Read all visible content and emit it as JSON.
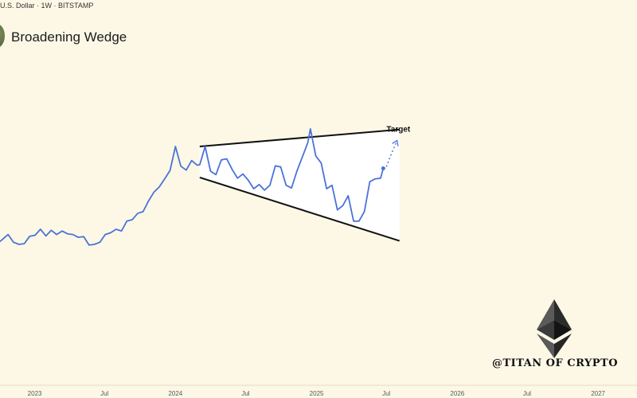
{
  "header": {
    "symbol_line": "U.S. Dollar · 1W · BITSTAMP",
    "title": "Broadening Wedge"
  },
  "watermark": {
    "text": "@TITAN OF CRYPTO",
    "icon": "ethereum-logo-icon"
  },
  "colors": {
    "background": "#fdf8e6",
    "price_line": "#4a73d8",
    "trendline": "#111111",
    "wedge_fill": "#ffffff",
    "target_arrow": "#4a73d8"
  },
  "chart_data": {
    "type": "line",
    "title": "Broadening Wedge",
    "xlabel": "",
    "ylabel": "",
    "grid": false,
    "legend": "none",
    "x_tick_labels": [
      "2023",
      "Jul",
      "2024",
      "Jul",
      "2025",
      "Jul",
      "2026",
      "Jul",
      "2027"
    ],
    "x_tick_dates": [
      "2023-01-01",
      "2023-07-01",
      "2024-01-01",
      "2024-07-01",
      "2025-01-01",
      "2025-07-01",
      "2026-01-01",
      "2026-07-01",
      "2027-01-01"
    ],
    "xlim": [
      "2022-10-03",
      "2027-04-12"
    ],
    "ylim": [
      0,
      520
    ],
    "series": [
      {
        "x": [
          "2022-10-03",
          "2022-10-24",
          "2022-11-07",
          "2022-11-21",
          "2022-12-05",
          "2022-12-19",
          "2023-01-02",
          "2023-01-16",
          "2023-01-30",
          "2023-02-13",
          "2023-02-27",
          "2023-03-13",
          "2023-03-27",
          "2023-04-10",
          "2023-04-24",
          "2023-05-08",
          "2023-05-22",
          "2023-06-05",
          "2023-06-19",
          "2023-07-03",
          "2023-07-17",
          "2023-07-31",
          "2023-08-14",
          "2023-08-28",
          "2023-09-11",
          "2023-09-25",
          "2023-10-09",
          "2023-10-23",
          "2023-11-06",
          "2023-11-20",
          "2023-12-04",
          "2023-12-18",
          "2024-01-01",
          "2024-01-15",
          "2024-01-29",
          "2024-02-12",
          "2024-02-26",
          "2024-03-04",
          "2024-03-18",
          "2024-04-01",
          "2024-04-15",
          "2024-04-29",
          "2024-05-13",
          "2024-05-27",
          "2024-06-10",
          "2024-06-24",
          "2024-07-08",
          "2024-07-22",
          "2024-08-05",
          "2024-08-19",
          "2024-09-02",
          "2024-09-16",
          "2024-09-30",
          "2024-10-14",
          "2024-10-28",
          "2024-11-11",
          "2024-11-25",
          "2024-12-09",
          "2024-12-16",
          "2024-12-30",
          "2025-01-13",
          "2025-01-27",
          "2025-02-10",
          "2025-02-24",
          "2025-03-10",
          "2025-03-24",
          "2025-04-07",
          "2025-04-21",
          "2025-05-05",
          "2025-05-19",
          "2025-06-02",
          "2025-06-16",
          "2025-06-23"
        ],
        "values": [
          60,
          80,
          58,
          52,
          54,
          75,
          78,
          95,
          76,
          92,
          80,
          90,
          82,
          80,
          72,
          74,
          50,
          52,
          58,
          80,
          85,
          95,
          90,
          118,
          122,
          140,
          145,
          175,
          200,
          215,
          238,
          262,
          330,
          274,
          263,
          290,
          277,
          278,
          330,
          260,
          250,
          292,
          295,
          265,
          240,
          252,
          234,
          210,
          222,
          206,
          220,
          275,
          272,
          220,
          212,
          260,
          300,
          340,
          380,
          303,
          283,
          210,
          220,
          150,
          162,
          190,
          118,
          118,
          145,
          230,
          238,
          240,
          268
        ]
      }
    ],
    "annotations": [
      {
        "type": "trendline",
        "role": "upper",
        "x": [
          "2024-03-04",
          "2025-08-04"
        ],
        "y": [
          330,
          378
        ]
      },
      {
        "type": "trendline",
        "role": "lower",
        "x": [
          "2024-03-04",
          "2025-08-04"
        ],
        "y": [
          242,
          62
        ]
      },
      {
        "type": "arrow",
        "style": "dotted",
        "x": [
          "2025-06-23",
          "2025-07-28"
        ],
        "y": [
          268,
          345
        ]
      },
      {
        "type": "text",
        "text": "Target",
        "x": "2025-07-28",
        "y": 372
      }
    ]
  }
}
